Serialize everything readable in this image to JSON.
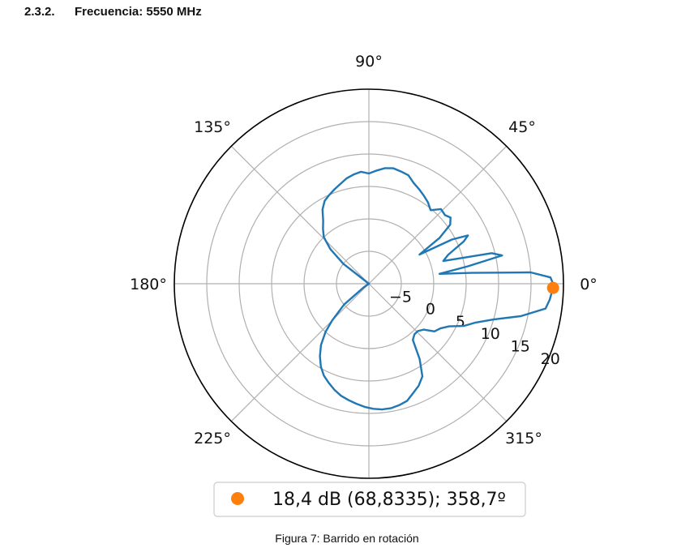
{
  "heading": {
    "number": "2.3.2.",
    "text": "Frecuencia: 5550 MHz"
  },
  "caption": "Figura 7: Barrido en rotación",
  "colors": {
    "series": "#1f77b4",
    "marker": "#ff7f0e",
    "grid": "#b0b0b0"
  },
  "chart_data": {
    "type": "polar-line",
    "title": "",
    "angle_unit": "degrees",
    "angle_ticks": [
      "0°",
      "45°",
      "90°",
      "135°",
      "180°",
      "225°",
      "270°",
      "315°"
    ],
    "radial_ticks": [
      "−5",
      "0",
      "5",
      "10",
      "15",
      "20"
    ],
    "radial_tick_values": [
      -5,
      0,
      5,
      10,
      15,
      20
    ],
    "rlim": [
      -10,
      20
    ],
    "grid": true,
    "series": [
      {
        "theta": [
          0,
          2,
          4,
          6,
          8,
          10,
          12,
          14,
          17,
          20,
          24,
          26,
          28,
          30,
          33,
          36,
          39,
          42,
          46,
          50,
          54,
          58,
          62,
          66,
          70,
          74,
          78,
          82,
          86,
          90,
          94,
          98,
          102,
          106,
          110,
          114,
          118,
          122,
          126,
          130,
          134,
          138,
          142,
          145,
          150,
          160,
          170,
          180,
          190,
          200,
          210,
          215,
          220,
          225,
          228,
          232,
          236,
          240,
          244,
          248,
          252,
          256,
          260,
          264,
          268,
          272,
          276,
          280,
          284,
          288,
          292,
          296,
          300,
          304,
          308,
          312,
          316,
          320,
          324,
          328,
          332,
          336,
          340,
          344,
          348,
          352,
          355,
          358.7,
          360
        ],
        "r": [
          18.4,
          18.0,
          15.0,
          6.0,
          1.0,
          5.5,
          11.0,
          9.5,
          2.0,
          3.0,
          6.0,
          7.0,
          4.5,
          -1.0,
          3.0,
          5.5,
          6.2,
          5.8,
          6.0,
          4.8,
          5.5,
          6.0,
          6.5,
          7.0,
          7.8,
          8.0,
          8.2,
          8.0,
          7.5,
          7.0,
          7.3,
          7.0,
          6.6,
          6.0,
          5.5,
          5.0,
          4.5,
          3.5,
          2.0,
          1.0,
          0.0,
          -2.0,
          -5.0,
          -10.0,
          -10.0,
          -10.0,
          -10.0,
          -10.0,
          -10.0,
          -10.0,
          -10.0,
          -9.0,
          -5.0,
          -2.0,
          0.0,
          2.0,
          3.5,
          4.8,
          5.8,
          6.5,
          7.2,
          7.8,
          8.2,
          8.6,
          9.0,
          9.3,
          9.5,
          9.5,
          9.3,
          9.0,
          8.2,
          7.5,
          6.5,
          4.0,
          1.0,
          0.5,
          0.5,
          1.0,
          2.5,
          3.0,
          4.0,
          6.0,
          7.5,
          10.0,
          14.0,
          17.5,
          18.0,
          18.4,
          18.4
        ]
      }
    ],
    "legend": {
      "position": "bottom-center",
      "entries": [
        {
          "label": "18,4 dB (68,8335); 358,7º"
        }
      ]
    },
    "marker_point": {
      "theta": 358.7,
      "r": 18.4
    }
  }
}
